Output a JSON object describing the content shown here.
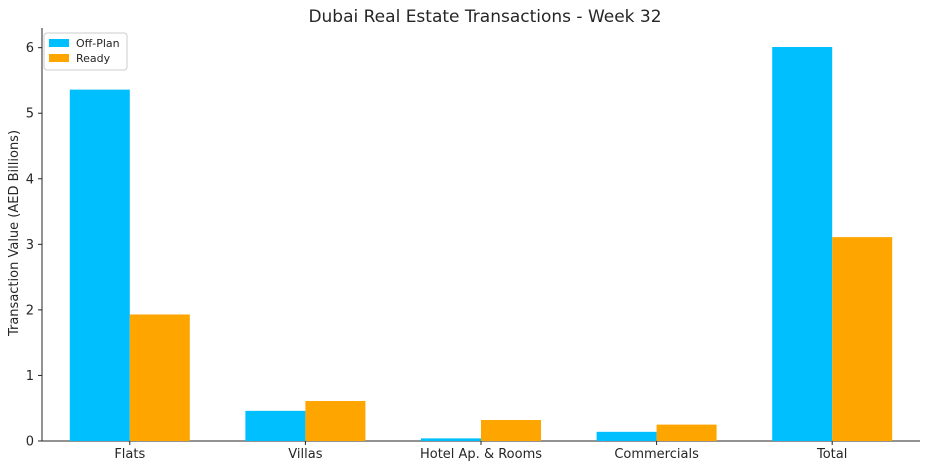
{
  "chart_data": {
    "type": "bar",
    "title": "Dubai Real Estate Transactions - Week 32",
    "xlabel": "",
    "ylabel": "Transaction Value (AED Billions)",
    "categories": [
      "Flats",
      "Villas",
      "Hotel Ap. & Rooms",
      "Commercials",
      "Total"
    ],
    "series": [
      {
        "name": "Off-Plan",
        "color": "#00BFFF",
        "values": [
          5.36,
          0.46,
          0.04,
          0.14,
          6.01
        ]
      },
      {
        "name": "Ready",
        "color": "#FFA500",
        "values": [
          1.93,
          0.61,
          0.32,
          0.25,
          3.11
        ]
      }
    ],
    "ylim": [
      0,
      6.3
    ],
    "yticks": [
      0,
      1,
      2,
      3,
      4,
      5,
      6
    ],
    "grid": false,
    "legend_position": "top-left"
  }
}
